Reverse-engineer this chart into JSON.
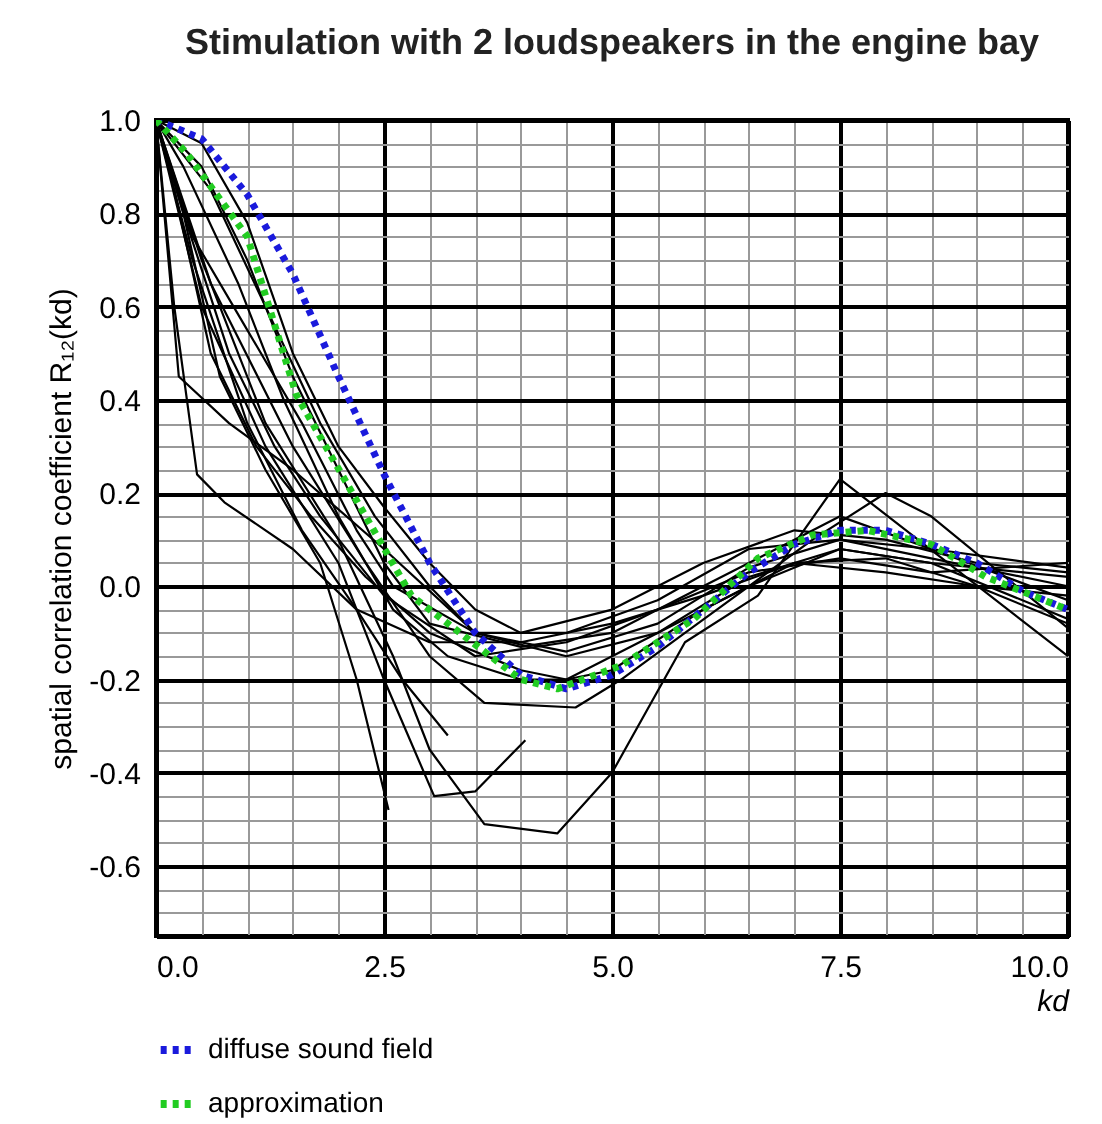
{
  "chart_data": {
    "type": "line",
    "title": "Stimulation with 2 loudspeakers in the engine bay",
    "xlabel": "kd",
    "ylabel": "spatial correlation coefficient R₁₂(kd)",
    "xlim": [
      0,
      10
    ],
    "ylim": [
      -0.75,
      1.0
    ],
    "xticks": [
      {
        "value": 0,
        "label": "0.0"
      },
      {
        "value": 0.5,
        "label": null
      },
      {
        "value": 1,
        "label": null
      },
      {
        "value": 1.5,
        "label": null
      },
      {
        "value": 2,
        "label": null
      },
      {
        "value": 2.5,
        "label": "2.5"
      },
      {
        "value": 3,
        "label": null
      },
      {
        "value": 3.5,
        "label": null
      },
      {
        "value": 4,
        "label": null
      },
      {
        "value": 4.5,
        "label": null
      },
      {
        "value": 5,
        "label": "5.0"
      },
      {
        "value": 5.5,
        "label": null
      },
      {
        "value": 6,
        "label": null
      },
      {
        "value": 6.5,
        "label": null
      },
      {
        "value": 7,
        "label": null
      },
      {
        "value": 7.5,
        "label": "7.5"
      },
      {
        "value": 8,
        "label": null
      },
      {
        "value": 8.5,
        "label": null
      },
      {
        "value": 9,
        "label": null
      },
      {
        "value": 9.5,
        "label": null
      },
      {
        "value": 10,
        "label": "10.0"
      }
    ],
    "yticks": [
      {
        "value": -0.7,
        "label": null
      },
      {
        "value": -0.65,
        "label": null
      },
      {
        "value": -0.6,
        "label": "-0.6"
      },
      {
        "value": -0.55,
        "label": null
      },
      {
        "value": -0.5,
        "label": null
      },
      {
        "value": -0.45,
        "label": null
      },
      {
        "value": -0.4,
        "label": "-0.4"
      },
      {
        "value": -0.35,
        "label": null
      },
      {
        "value": -0.3,
        "label": null
      },
      {
        "value": -0.25,
        "label": null
      },
      {
        "value": -0.2,
        "label": "-0.2"
      },
      {
        "value": -0.15,
        "label": null
      },
      {
        "value": -0.1,
        "label": null
      },
      {
        "value": -0.05,
        "label": null
      },
      {
        "value": 0,
        "label": "0.0"
      },
      {
        "value": 0.05,
        "label": null
      },
      {
        "value": 0.1,
        "label": null
      },
      {
        "value": 0.15,
        "label": null
      },
      {
        "value": 0.2,
        "label": "0.2"
      },
      {
        "value": 0.25,
        "label": null
      },
      {
        "value": 0.3,
        "label": null
      },
      {
        "value": 0.35,
        "label": null
      },
      {
        "value": 0.4,
        "label": "0.4"
      },
      {
        "value": 0.45,
        "label": null
      },
      {
        "value": 0.5,
        "label": null
      },
      {
        "value": 0.55,
        "label": null
      },
      {
        "value": 0.6,
        "label": "0.6"
      },
      {
        "value": 0.65,
        "label": null
      },
      {
        "value": 0.7,
        "label": null
      },
      {
        "value": 0.75,
        "label": null
      },
      {
        "value": 0.8,
        "label": "0.8"
      },
      {
        "value": 0.85,
        "label": null
      },
      {
        "value": 0.9,
        "label": null
      },
      {
        "value": 0.95,
        "label": null
      },
      {
        "value": 1,
        "label": "1.0"
      }
    ],
    "grid": true,
    "legend": "bottom",
    "marker": "none",
    "series": [
      {
        "color": "#000000",
        "line_style": "solid",
        "x": [
          0,
          0.3,
          0.7,
          1.2,
          1.8,
          2.2,
          2.55
        ],
        "values": [
          1,
          0.8,
          0.45,
          0.25,
          0.05,
          -0.2,
          -0.48
        ]
      },
      {
        "color": "#000000",
        "line_style": "solid",
        "x": [
          0,
          0.4,
          1,
          1.6,
          2.2,
          2.7,
          3.2
        ],
        "values": [
          1,
          0.7,
          0.35,
          0.12,
          -0.05,
          -0.2,
          -0.32
        ]
      },
      {
        "color": "#000000",
        "line_style": "solid",
        "x": [
          0,
          0.5,
          1.2,
          2,
          2.5,
          3.05,
          3.5,
          4.05
        ],
        "values": [
          1,
          0.6,
          0.3,
          0.05,
          -0.2,
          -0.45,
          -0.44,
          -0.33
        ]
      },
      {
        "color": "#000000",
        "line_style": "solid",
        "x": [
          0,
          0.5,
          1.2,
          2,
          2.6,
          3,
          3.6,
          4.4,
          5,
          5.8,
          6.6,
          7.5,
          10
        ],
        "values": [
          1,
          0.7,
          0.35,
          0.1,
          -0.15,
          -0.35,
          -0.51,
          -0.53,
          -0.4,
          -0.12,
          -0.02,
          0.23,
          -0.15
        ]
      },
      {
        "color": "#000000",
        "line_style": "solid",
        "x": [
          0,
          0.6,
          1.5,
          2.3,
          3,
          3.6,
          4.6,
          5.1,
          5.8,
          6.5,
          7.2,
          8,
          8.5,
          10
        ],
        "values": [
          1,
          0.65,
          0.3,
          0.05,
          -0.15,
          -0.25,
          -0.26,
          -0.2,
          -0.1,
          0,
          0.1,
          0.2,
          0.15,
          -0.09
        ]
      },
      {
        "color": "#000000",
        "line_style": "solid",
        "x": [
          0,
          0.2,
          0.45,
          0.75,
          1.5,
          2.2,
          3,
          4,
          5,
          6,
          7,
          8,
          9,
          10
        ],
        "values": [
          1,
          0.6,
          0.24,
          0.18,
          0.08,
          -0.05,
          -0.12,
          -0.12,
          -0.08,
          -0.02,
          0.05,
          0.03,
          0,
          -0.02
        ]
      },
      {
        "color": "#000000",
        "line_style": "solid",
        "x": [
          0,
          0.25,
          0.8,
          1.5,
          2.5,
          3.5,
          4.5,
          5.5,
          6.5,
          7.5,
          8.5,
          10
        ],
        "values": [
          1,
          0.45,
          0.35,
          0.25,
          0.08,
          -0.1,
          -0.15,
          -0.1,
          0,
          0.08,
          0.05,
          0.02
        ]
      },
      {
        "color": "#000000",
        "line_style": "solid",
        "x": [
          0,
          0.5,
          1,
          1.5,
          2,
          2.5,
          3,
          4,
          5,
          6,
          7,
          7.5,
          8.5,
          10
        ],
        "values": [
          1,
          0.9,
          0.7,
          0.45,
          0.25,
          0.05,
          -0.08,
          -0.13,
          -0.1,
          0,
          0.1,
          0.15,
          0.08,
          -0.03
        ]
      },
      {
        "color": "#000000",
        "line_style": "solid",
        "x": [
          0,
          0.5,
          1,
          1.5,
          2,
          2.5,
          3,
          3.5,
          4,
          5,
          6,
          7,
          8,
          9,
          10
        ],
        "values": [
          1,
          0.95,
          0.78,
          0.5,
          0.3,
          0.17,
          0.05,
          -0.05,
          -0.1,
          -0.05,
          0.05,
          0.12,
          0.1,
          0.05,
          0.03
        ]
      },
      {
        "color": "#000000",
        "line_style": "solid",
        "x": [
          0,
          0.3,
          0.8,
          1.3,
          1.8,
          2.5,
          3.5,
          4.5,
          5.5,
          6.5,
          7.5,
          8.5,
          10
        ],
        "values": [
          1,
          0.8,
          0.5,
          0.3,
          0.15,
          -0.02,
          -0.15,
          -0.12,
          -0.05,
          0.03,
          0.06,
          0.03,
          0.05
        ]
      },
      {
        "color": "#000000",
        "line_style": "solid",
        "x": [
          0,
          0.4,
          1,
          1.6,
          2.2,
          2.6,
          3.5,
          4.5,
          5.5,
          6.5,
          7.5,
          8.5,
          10
        ],
        "values": [
          1,
          0.75,
          0.55,
          0.35,
          0.12,
          0,
          -0.1,
          -0.1,
          -0.03,
          0.08,
          0.1,
          0.06,
          0
        ]
      },
      {
        "color": "#000000",
        "line_style": "solid",
        "x": [
          0,
          0.2,
          0.6,
          1.1,
          1.7,
          2.3,
          3,
          4,
          4.5,
          5.5,
          6.5,
          7.5,
          8.5,
          10
        ],
        "values": [
          1,
          0.85,
          0.5,
          0.3,
          0.15,
          0.02,
          -0.1,
          -0.18,
          -0.2,
          -0.1,
          0.02,
          0.08,
          0.05,
          -0.07
        ]
      },
      {
        "color": "#000000",
        "line_style": "solid",
        "x": [
          0,
          0.3,
          0.9,
          1.4,
          2,
          2.6,
          3.2,
          4,
          4.5,
          5,
          6,
          7,
          8,
          9,
          10
        ],
        "values": [
          1,
          0.9,
          0.65,
          0.4,
          0.15,
          -0.05,
          -0.15,
          -0.2,
          -0.2,
          -0.18,
          -0.05,
          0.05,
          0.06,
          0,
          -0.08
        ]
      },
      {
        "color": "#000000",
        "line_style": "solid",
        "x": [
          0,
          0.6,
          1.2,
          1.8,
          2.4,
          3,
          3.5,
          4.5,
          5.5,
          6.5,
          7.5,
          8.5,
          10
        ],
        "values": [
          1,
          0.85,
          0.6,
          0.35,
          0.15,
          0,
          -0.1,
          -0.14,
          -0.08,
          0.04,
          0.1,
          0.08,
          0.04
        ]
      },
      {
        "name": "diffuse sound field",
        "color": "#1a1adc",
        "line_style": "dotted",
        "x": [
          0,
          0.5,
          1,
          1.5,
          2,
          2.5,
          3,
          3.5,
          4,
          4.5,
          5,
          5.5,
          6,
          6.5,
          7,
          7.5,
          8,
          8.5,
          9,
          9.5,
          10
        ],
        "values": [
          1,
          0.96,
          0.84,
          0.67,
          0.45,
          0.24,
          0.05,
          -0.1,
          -0.19,
          -0.22,
          -0.19,
          -0.13,
          -0.05,
          0.03,
          0.09,
          0.12,
          0.12,
          0.09,
          0.05,
          -0.01,
          -0.05
        ]
      },
      {
        "name": "approximation",
        "color": "#22cc22",
        "line_style": "dotted",
        "x": [
          0,
          0.33,
          1,
          1.54,
          2.24,
          2.8,
          4,
          4.4,
          5.1,
          5.9,
          6.6,
          7.2,
          7.8,
          8.5,
          9.1,
          10
        ],
        "values": [
          1,
          0.93,
          0.75,
          0.41,
          0.17,
          -0.02,
          -0.2,
          -0.22,
          -0.17,
          -0.07,
          0.06,
          0.11,
          0.12,
          0.09,
          0.02,
          -0.05
        ]
      }
    ]
  }
}
